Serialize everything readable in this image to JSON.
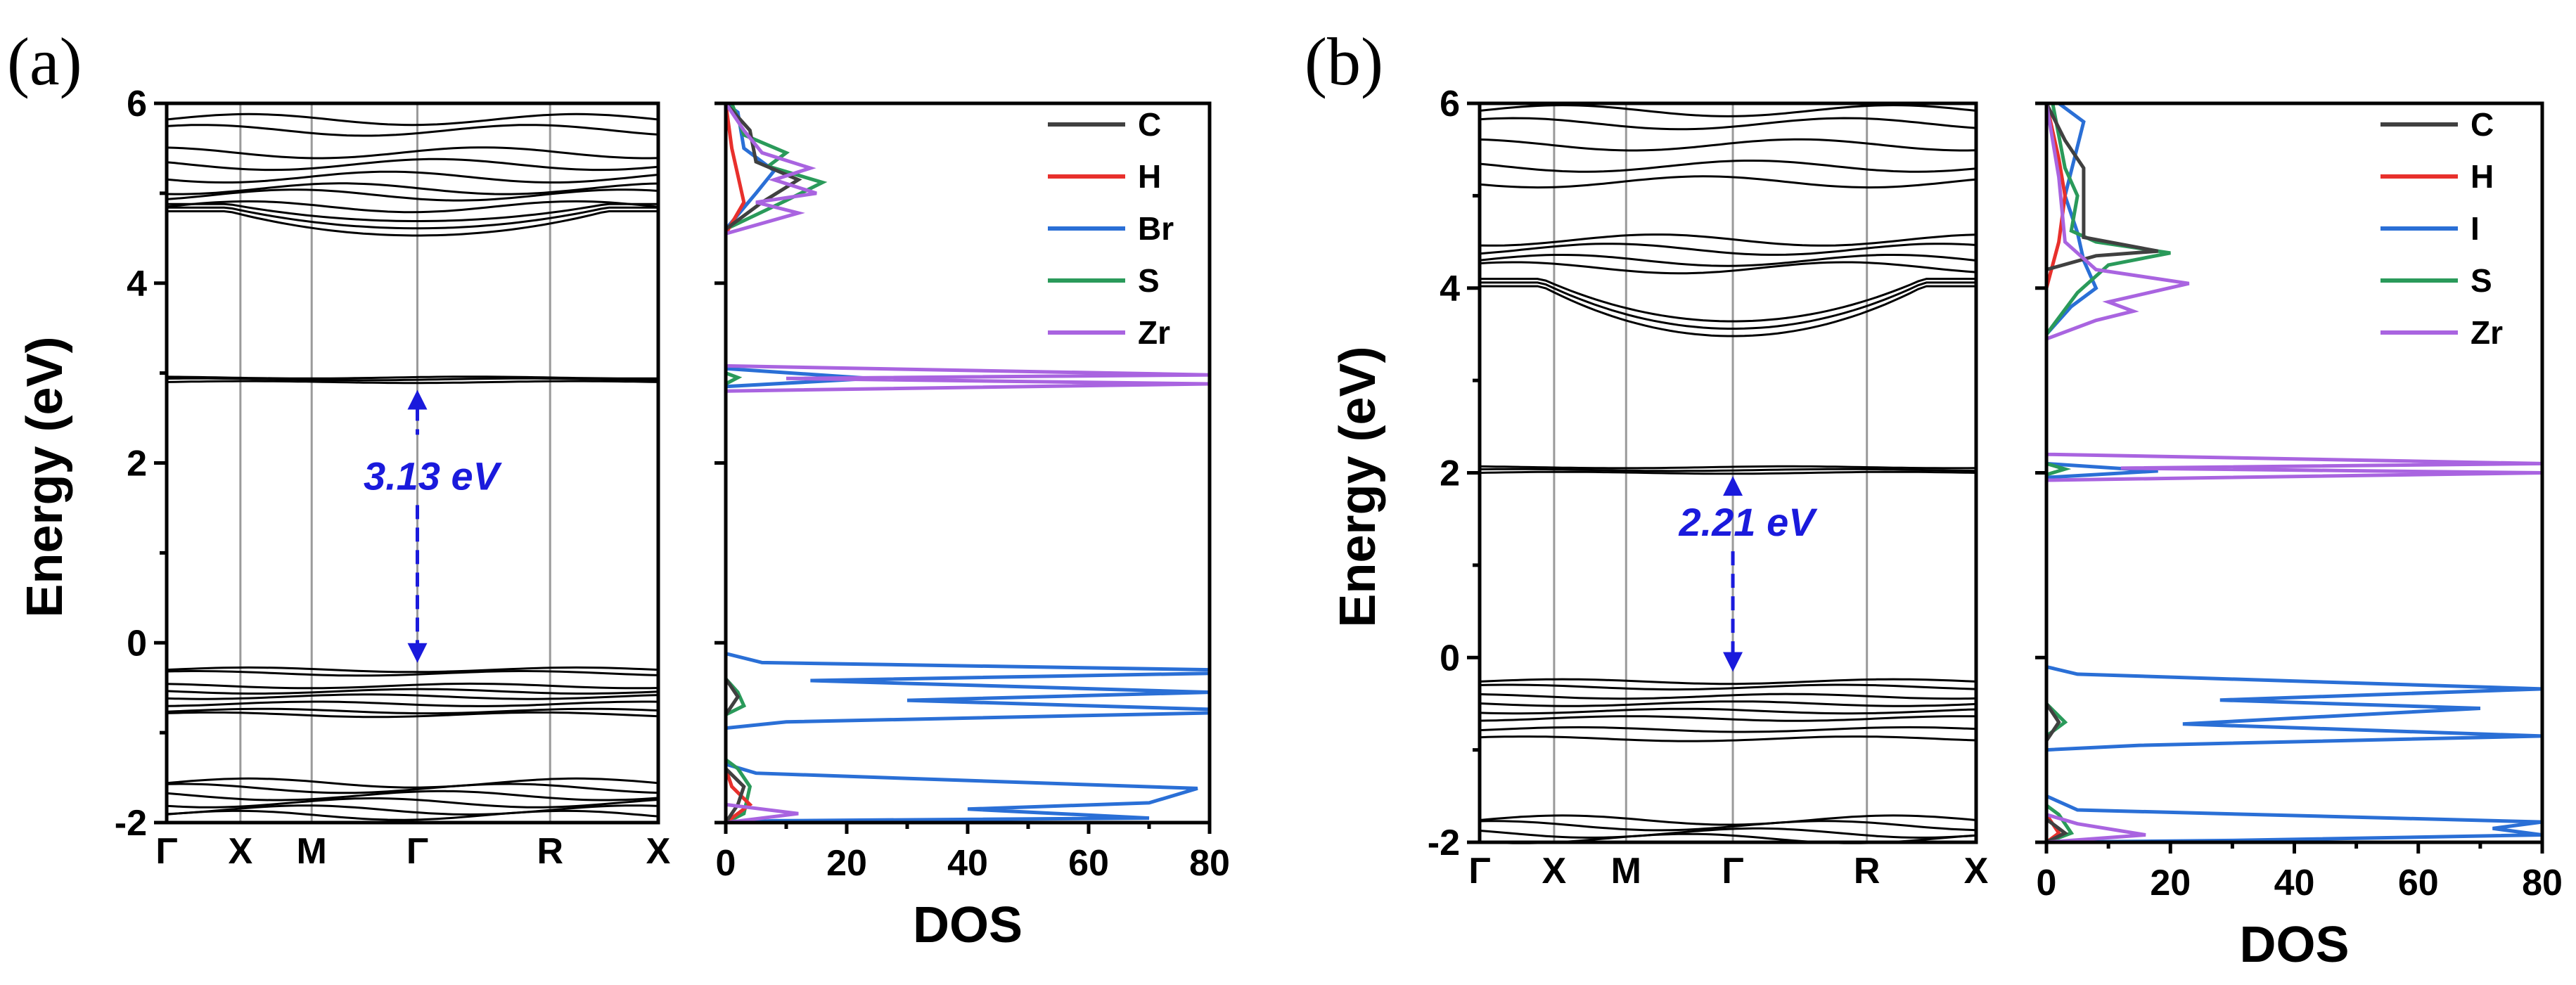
{
  "colors": {
    "C": "#404040",
    "H": "#e8302c",
    "Br": "#2a6fd6",
    "I": "#2a6fd6",
    "S": "#2a9a5a",
    "Zr": "#a964e0",
    "gap_arrow": "#1a1adc",
    "band": "#000000",
    "kline": "#9a9a9a"
  },
  "chart_data": [
    {
      "panel_label": "(a)",
      "type": "line",
      "title": "",
      "ylabel": "Energy (eV)",
      "dos_xlabel": "DOS",
      "ylim": [
        -2,
        6
      ],
      "yticks": [
        "-2",
        "0",
        "2",
        "4",
        "6"
      ],
      "kpoints": [
        "Γ",
        "X",
        "M",
        "Γ",
        "R",
        "X"
      ],
      "dos_xlim": [
        0,
        80
      ],
      "dos_xticks": [
        "0",
        "20",
        "40",
        "60",
        "80"
      ],
      "band_gap": {
        "label": "3.13 eV",
        "vbm": -0.27,
        "cbm": 2.86
      },
      "bands": {
        "vb_flat": [
          -0.3,
          -0.34,
          -0.48,
          -0.54,
          -0.6,
          -0.68,
          -0.76,
          -0.8
        ],
        "deep": [
          -1.56,
          -1.62,
          -1.7,
          -1.78,
          -1.86,
          -1.92
        ],
        "cb_flat": [
          2.9,
          2.93,
          2.95
        ],
        "upper_flat": [
          5.82,
          5.7,
          5.45,
          5.32,
          5.18,
          5.05,
          4.98,
          4.85
        ],
        "upper_arc": {
          "base": 4.53,
          "peak": 4.8
        }
      },
      "legend": [
        "C",
        "H",
        "Br",
        "S",
        "Zr"
      ],
      "dos_series": [
        {
          "name": "Br",
          "points": [
            [
              0,
              -2
            ],
            [
              8,
              -1.98
            ],
            [
              70,
              -1.95
            ],
            [
              40,
              -1.85
            ],
            [
              70,
              -1.78
            ],
            [
              78,
              -1.62
            ],
            [
              5,
              -1.45
            ],
            [
              0,
              -1.35
            ],
            [
              0,
              -0.95
            ],
            [
              10,
              -0.88
            ],
            [
              80,
              -0.78
            ],
            [
              80,
              -0.74
            ],
            [
              30,
              -0.64
            ],
            [
              80,
              -0.55
            ],
            [
              14,
              -0.42
            ],
            [
              80,
              -0.34
            ],
            [
              80,
              -0.3
            ],
            [
              6,
              -0.22
            ],
            [
              0,
              -0.12
            ],
            [
              0,
              2.85
            ],
            [
              24,
              2.94
            ],
            [
              0,
              3.05
            ],
            [
              0,
              4.6
            ],
            [
              5,
              5.0
            ],
            [
              8,
              5.25
            ],
            [
              3,
              5.5
            ],
            [
              2,
              5.9
            ],
            [
              0,
              6
            ]
          ]
        },
        {
          "name": "S",
          "points": [
            [
              0,
              -2
            ],
            [
              3,
              -1.9
            ],
            [
              4,
              -1.6
            ],
            [
              2,
              -1.4
            ],
            [
              0,
              -1.3
            ],
            [
              0,
              -0.8
            ],
            [
              3,
              -0.7
            ],
            [
              2,
              -0.55
            ],
            [
              0,
              -0.4
            ],
            [
              0,
              2.88
            ],
            [
              2,
              2.95
            ],
            [
              0,
              3.0
            ],
            [
              0,
              4.6
            ],
            [
              10,
              4.92
            ],
            [
              16,
              5.12
            ],
            [
              7,
              5.3
            ],
            [
              10,
              5.45
            ],
            [
              3,
              5.65
            ],
            [
              1,
              6
            ]
          ]
        },
        {
          "name": "H",
          "points": [
            [
              0,
              -2
            ],
            [
              4,
              -1.8
            ],
            [
              1,
              -1.6
            ],
            [
              0,
              -1.4
            ],
            [
              0,
              4.55
            ],
            [
              3,
              4.9
            ],
            [
              2,
              5.2
            ],
            [
              1,
              5.5
            ],
            [
              0,
              6
            ]
          ]
        },
        {
          "name": "C",
          "points": [
            [
              0,
              -2
            ],
            [
              2,
              -1.8
            ],
            [
              3,
              -1.6
            ],
            [
              0,
              -1.4
            ],
            [
              0,
              -0.8
            ],
            [
              2,
              -0.6
            ],
            [
              0,
              -0.4
            ],
            [
              0,
              4.6
            ],
            [
              6,
              4.9
            ],
            [
              12,
              5.15
            ],
            [
              5,
              5.35
            ],
            [
              4,
              5.7
            ],
            [
              0,
              6
            ]
          ]
        },
        {
          "name": "Zr",
          "points": [
            [
              0,
              -2
            ],
            [
              12,
              -1.9
            ],
            [
              0,
              -1.8
            ],
            [
              0,
              2.8
            ],
            [
              80,
              2.88
            ],
            [
              10,
              2.94
            ],
            [
              80,
              2.98
            ],
            [
              0,
              3.08
            ],
            [
              0,
              4.55
            ],
            [
              12,
              4.78
            ],
            [
              5,
              4.9
            ],
            [
              15,
              5.0
            ],
            [
              8,
              5.15
            ],
            [
              14,
              5.28
            ],
            [
              6,
              5.45
            ],
            [
              3,
              5.7
            ],
            [
              0,
              6
            ]
          ]
        }
      ]
    },
    {
      "panel_label": "(b)",
      "type": "line",
      "title": "",
      "ylabel": "Energy (eV)",
      "dos_xlabel": "DOS",
      "ylim": [
        -2,
        6
      ],
      "yticks": [
        "-2",
        "0",
        "2",
        "4",
        "6"
      ],
      "kpoints": [
        "Γ",
        "X",
        "M",
        "Γ",
        "R",
        "X"
      ],
      "dos_xlim": [
        0,
        80
      ],
      "dos_xticks": [
        "0",
        "20",
        "40",
        "60",
        "80"
      ],
      "band_gap": {
        "label": "2.21 eV",
        "vbm": -0.2,
        "cbm": 2.01
      },
      "bands": {
        "vb_flat": [
          -0.26,
          -0.32,
          -0.42,
          -0.5,
          -0.58,
          -0.66,
          -0.78,
          -0.88
        ],
        "deep": [
          -1.76,
          -1.82,
          -1.9,
          -1.96
        ],
        "cb_flat": [
          2.0,
          2.03,
          2.06
        ],
        "upper_flat": [
          5.92,
          5.78,
          5.55,
          5.32,
          5.15,
          4.52,
          4.42,
          4.3,
          4.22
        ],
        "upper_arc": {
          "base": 3.48,
          "peak": 4.02
        }
      },
      "legend": [
        "C",
        "H",
        "I",
        "S",
        "Zr"
      ],
      "dos_series": [
        {
          "name": "I",
          "points": [
            [
              0,
              -2
            ],
            [
              30,
              -1.98
            ],
            [
              80,
              -1.92
            ],
            [
              72,
              -1.85
            ],
            [
              80,
              -1.78
            ],
            [
              5,
              -1.65
            ],
            [
              0,
              -1.5
            ],
            [
              0,
              -1.0
            ],
            [
              15,
              -0.95
            ],
            [
              80,
              -0.85
            ],
            [
              22,
              -0.72
            ],
            [
              70,
              -0.55
            ],
            [
              28,
              -0.46
            ],
            [
              80,
              -0.34
            ],
            [
              5,
              -0.18
            ],
            [
              0,
              -0.1
            ],
            [
              0,
              1.95
            ],
            [
              18,
              2.02
            ],
            [
              0,
              2.1
            ],
            [
              0,
              3.5
            ],
            [
              4,
              3.8
            ],
            [
              8,
              4.0
            ],
            [
              6,
              4.3
            ],
            [
              5,
              4.6
            ],
            [
              3,
              5.0
            ],
            [
              6,
              5.8
            ],
            [
              2,
              6
            ]
          ]
        },
        {
          "name": "S",
          "points": [
            [
              0,
              -2
            ],
            [
              4,
              -1.9
            ],
            [
              2,
              -1.7
            ],
            [
              0,
              -1.6
            ],
            [
              0,
              -0.85
            ],
            [
              3,
              -0.7
            ],
            [
              0,
              -0.5
            ],
            [
              0,
              1.98
            ],
            [
              3,
              2.04
            ],
            [
              0,
              2.1
            ],
            [
              0,
              3.5
            ],
            [
              5,
              3.95
            ],
            [
              10,
              4.25
            ],
            [
              20,
              4.38
            ],
            [
              8,
              4.5
            ],
            [
              4,
              4.62
            ],
            [
              5,
              5.0
            ],
            [
              3,
              5.3
            ],
            [
              1,
              6
            ]
          ]
        },
        {
          "name": "H",
          "points": [
            [
              0,
              -2
            ],
            [
              2,
              -1.9
            ],
            [
              0,
              -1.7
            ],
            [
              0,
              4.0
            ],
            [
              2,
              4.5
            ],
            [
              3,
              5.0
            ],
            [
              2,
              5.4
            ],
            [
              0,
              6
            ]
          ]
        },
        {
          "name": "C",
          "points": [
            [
              0,
              -2
            ],
            [
              3,
              -1.9
            ],
            [
              0,
              -1.75
            ],
            [
              0,
              -0.9
            ],
            [
              2,
              -0.7
            ],
            [
              0,
              -0.5
            ],
            [
              0,
              4.2
            ],
            [
              8,
              4.35
            ],
            [
              18,
              4.4
            ],
            [
              6,
              4.55
            ],
            [
              6,
              5.3
            ],
            [
              3,
              5.6
            ],
            [
              0,
              6
            ]
          ]
        },
        {
          "name": "Zr",
          "points": [
            [
              0,
              -2
            ],
            [
              16,
              -1.92
            ],
            [
              5,
              -1.8
            ],
            [
              0,
              -1.7
            ],
            [
              0,
              1.92
            ],
            [
              80,
              2.0
            ],
            [
              12,
              2.05
            ],
            [
              80,
              2.1
            ],
            [
              0,
              2.2
            ],
            [
              0,
              3.45
            ],
            [
              8,
              3.65
            ],
            [
              14,
              3.75
            ],
            [
              10,
              3.85
            ],
            [
              23,
              4.05
            ],
            [
              8,
              4.2
            ],
            [
              3,
              4.5
            ],
            [
              2,
              5.2
            ],
            [
              0,
              6
            ]
          ]
        }
      ]
    }
  ]
}
